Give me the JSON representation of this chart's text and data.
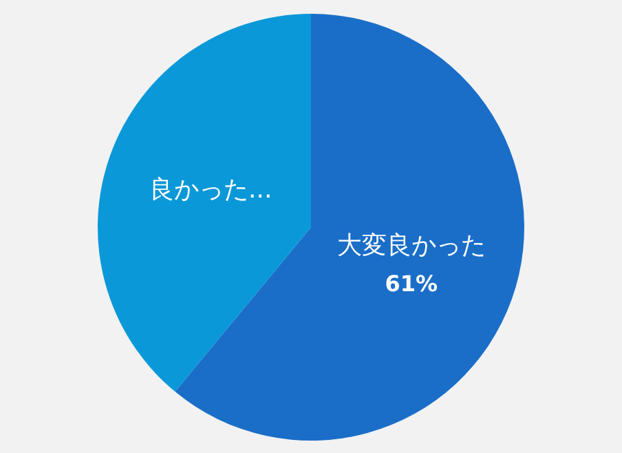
{
  "chart_data": {
    "type": "pie",
    "categories": [
      "大変良かった",
      "良かった..."
    ],
    "values": [
      61,
      39
    ],
    "colors": [
      "#1a6ec8",
      "#0a98d8"
    ],
    "value_labels": [
      "61%",
      null
    ],
    "legend": false
  }
}
